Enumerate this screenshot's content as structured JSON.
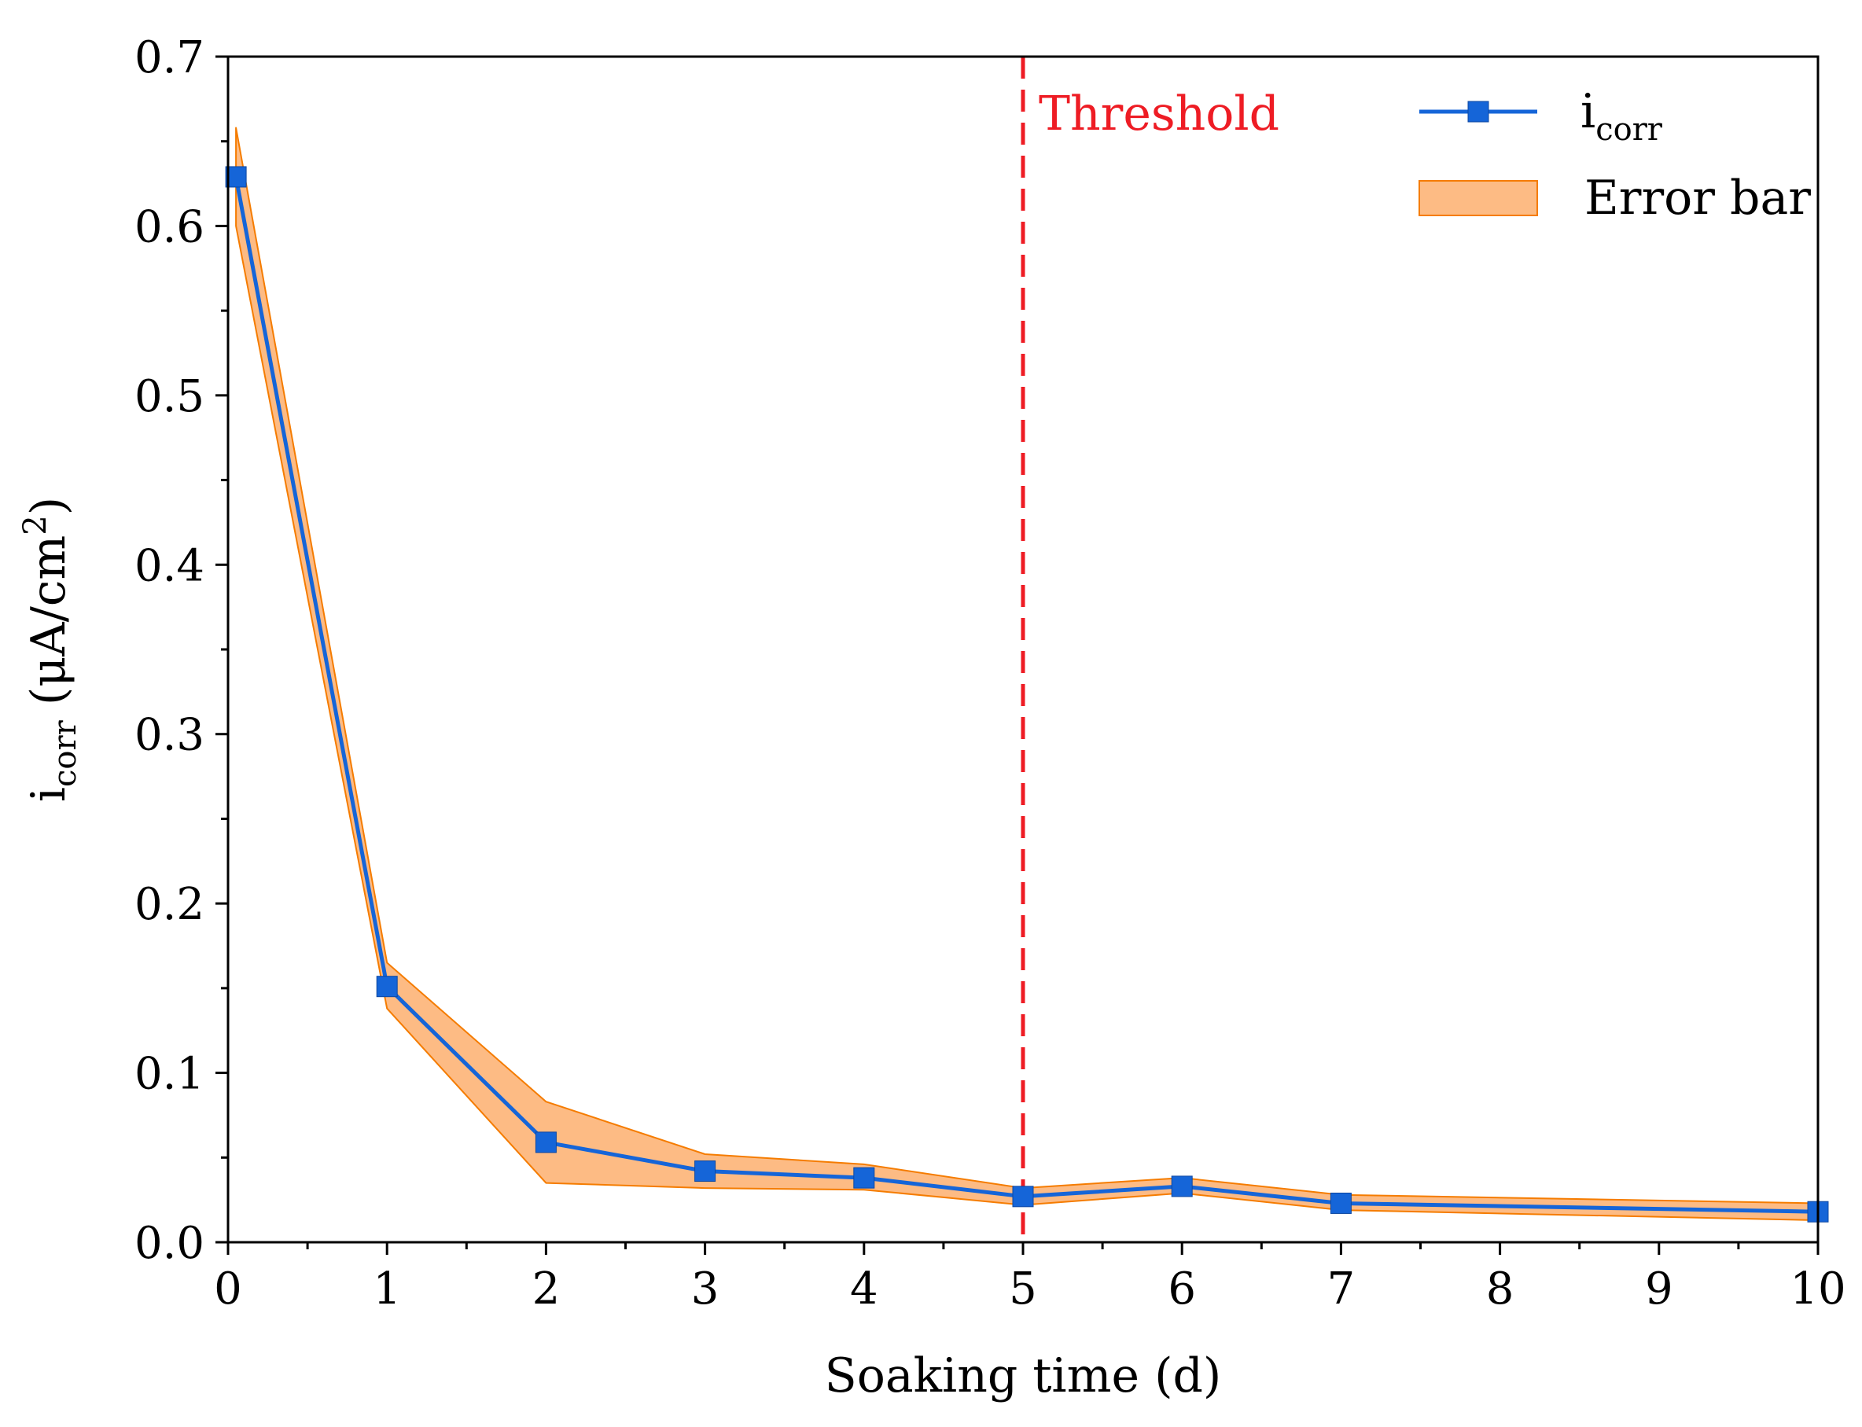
{
  "chart_data": {
    "type": "line",
    "title": "",
    "xlabel": "Soaking time (d)",
    "ylabel": {
      "main": "i",
      "sub": "corr",
      "unit_prefix": " (μA/cm",
      "unit_sup": "2",
      "unit_suffix": ")"
    },
    "xlim": [
      0,
      10
    ],
    "ylim": [
      0,
      0.7
    ],
    "x_ticks": [
      0,
      1,
      2,
      3,
      4,
      5,
      6,
      7,
      8,
      9,
      10
    ],
    "x_tick_labels": [
      "0",
      "1",
      "2",
      "3",
      "4",
      "5",
      "6",
      "7",
      "8",
      "9",
      "10"
    ],
    "y_ticks": [
      0,
      0.1,
      0.2,
      0.3,
      0.4,
      0.5,
      0.6,
      0.7
    ],
    "y_tick_labels": [
      "0.0",
      "0.1",
      "0.2",
      "0.3",
      "0.4",
      "0.5",
      "0.6",
      "0.7"
    ],
    "grid": false,
    "legend_position": "top-right",
    "series": [
      {
        "name": "i",
        "name_sub": "corr",
        "color": "#1565d8",
        "marker": "square",
        "x": [
          0.05,
          1,
          2,
          3,
          4,
          5,
          6,
          7,
          10
        ],
        "values": [
          0.629,
          0.151,
          0.059,
          0.042,
          0.038,
          0.027,
          0.033,
          0.023,
          0.018
        ]
      }
    ],
    "error_band": {
      "name": "Error bar",
      "fill": "#fdbb84",
      "stroke": "#f57c00",
      "x": [
        0.05,
        1,
        2,
        3,
        4,
        5,
        6,
        7,
        10
      ],
      "upper": [
        0.658,
        0.165,
        0.083,
        0.052,
        0.046,
        0.032,
        0.038,
        0.028,
        0.023
      ],
      "lower": [
        0.6,
        0.138,
        0.035,
        0.032,
        0.031,
        0.022,
        0.029,
        0.019,
        0.013
      ]
    },
    "threshold": {
      "x": 5,
      "label": "Threshold",
      "color": "#ee1c24"
    }
  }
}
